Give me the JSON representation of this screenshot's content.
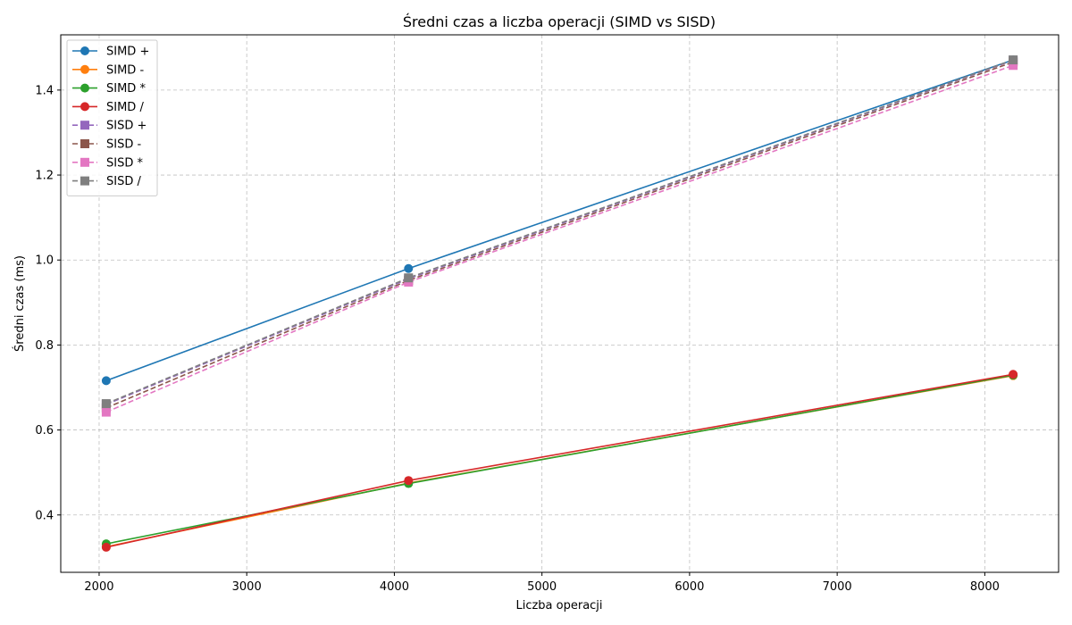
{
  "chart_data": {
    "type": "line",
    "title": "Średni czas a liczba operacji (SIMD vs SISD)",
    "xlabel": "Liczba operacji",
    "ylabel": "Średni czas (ms)",
    "xlim": [
      1740,
      8500
    ],
    "ylim": [
      0.265,
      1.53
    ],
    "xticks": [
      2000,
      3000,
      4000,
      5000,
      6000,
      7000,
      8000
    ],
    "yticks": [
      0.4,
      0.6,
      0.8,
      1.0,
      1.2,
      1.4
    ],
    "xtick_labels": [
      "2000",
      "3000",
      "4000",
      "5000",
      "6000",
      "7000",
      "8000"
    ],
    "ytick_labels": [
      "0.4",
      "0.6",
      "0.8",
      "1.0",
      "1.2",
      "1.4"
    ],
    "grid": true,
    "legend_position": "top-left",
    "x": [
      2048,
      4096,
      8192
    ],
    "series": [
      {
        "name": "SIMD +",
        "values": [
          0.716,
          0.98,
          1.471
        ],
        "color": "#1f77b4",
        "marker": "circle",
        "linestyle": "solid"
      },
      {
        "name": "SIMD -",
        "values": [
          0.325,
          0.475,
          0.728
        ],
        "color": "#ff7f0e",
        "marker": "circle",
        "linestyle": "solid"
      },
      {
        "name": "SIMD *",
        "values": [
          0.332,
          0.474,
          0.729
        ],
        "color": "#2ca02c",
        "marker": "circle",
        "linestyle": "solid"
      },
      {
        "name": "SIMD /",
        "values": [
          0.324,
          0.481,
          0.731
        ],
        "color": "#d62728",
        "marker": "circle",
        "linestyle": "solid"
      },
      {
        "name": "SISD +",
        "values": [
          0.66,
          0.956,
          1.47
        ],
        "color": "#9467bd",
        "marker": "square",
        "linestyle": "dashed"
      },
      {
        "name": "SISD -",
        "values": [
          0.652,
          0.952,
          1.466
        ],
        "color": "#8c564b",
        "marker": "square",
        "linestyle": "dashed"
      },
      {
        "name": "SISD *",
        "values": [
          0.642,
          0.948,
          1.458
        ],
        "color": "#e377c2",
        "marker": "square",
        "linestyle": "dashed"
      },
      {
        "name": "SISD /",
        "values": [
          0.662,
          0.958,
          1.471
        ],
        "color": "#7f7f7f",
        "marker": "square",
        "linestyle": "dashed"
      }
    ]
  }
}
